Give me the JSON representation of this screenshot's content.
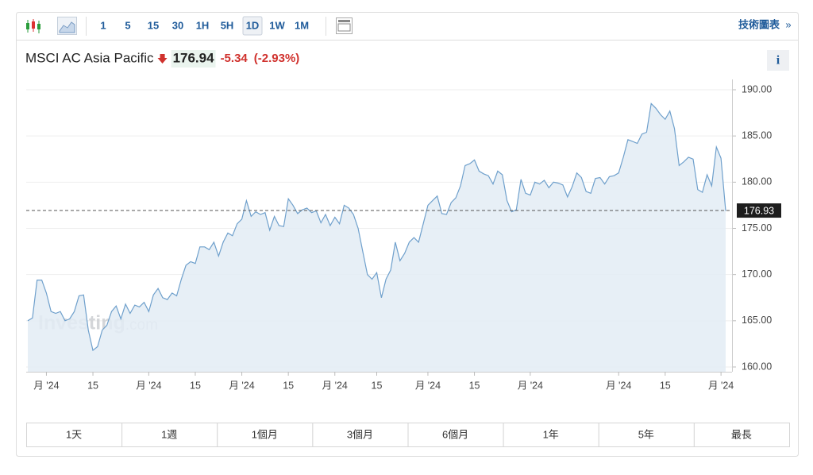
{
  "toolbar": {
    "intervals": [
      "1",
      "5",
      "15",
      "30",
      "1H",
      "5H",
      "1D",
      "1W",
      "1M"
    ],
    "active_interval": "1D",
    "technical_link": "技術圖表"
  },
  "header": {
    "name": "MSCI AC Asia Pacific",
    "price": "176.94",
    "change": "-5.34",
    "change_pct": "(-2.93%)",
    "info": "i"
  },
  "watermark": {
    "brand": "Investing",
    "suffix": ".com"
  },
  "chart_data": {
    "type": "area",
    "color": "#6fa0cc",
    "fill": "#e3ecf5",
    "values": [
      165,
      165.3,
      169.4,
      169.4,
      168,
      166,
      165.8,
      166,
      165,
      165.2,
      166,
      167.7,
      167.8,
      164,
      161.8,
      162.2,
      164,
      164.5,
      166,
      166.6,
      165.2,
      166.8,
      165.8,
      166.7,
      166.5,
      167,
      166,
      167.8,
      168.5,
      167.5,
      167.3,
      168,
      167.7,
      169.5,
      171,
      171.4,
      171.2,
      173,
      173,
      172.7,
      173.5,
      172,
      173.5,
      174.5,
      174.2,
      175.5,
      176,
      178,
      176.3,
      176.8,
      176.5,
      176.7,
      174.8,
      176.3,
      175.3,
      175.2,
      178.2,
      177.5,
      176.6,
      177,
      177.2,
      176.7,
      176.9,
      175.6,
      176.5,
      175.3,
      176.2,
      175.5,
      177.5,
      177.2,
      176.5,
      175,
      172.5,
      170,
      169.5,
      170.2,
      167.5,
      169.5,
      170.5,
      173.5,
      171.5,
      172.3,
      173.5,
      174,
      173.5,
      175.5,
      177.5,
      178,
      178.5,
      176.6,
      176.5,
      177.8,
      178.3,
      179.6,
      181.8,
      182,
      182.4,
      181.2,
      180.9,
      180.7,
      179.8,
      181.2,
      180.8,
      178,
      176.8,
      177,
      180.3,
      178.8,
      178.6,
      180,
      179.8,
      180.2,
      179.4,
      180,
      179.9,
      179.7,
      178.4,
      179.5,
      181,
      180.5,
      179,
      178.8,
      180.4,
      180.5,
      179.8,
      180.6,
      180.7,
      181,
      182.7,
      184.6,
      184.4,
      184.2,
      185.2,
      185.4,
      188.5,
      188,
      187.3,
      186.8,
      187.7,
      185.8,
      181.8,
      182.2,
      182.7,
      182.5,
      179.2,
      178.9,
      180.8,
      179.6,
      183.8,
      182.6,
      176.9
    ],
    "xlim": [
      0,
      150
    ],
    "xticks": [
      {
        "value": 4,
        "label": "月 '24"
      },
      {
        "value": 14,
        "label": "15"
      },
      {
        "value": 26,
        "label": "月 '24"
      },
      {
        "value": 36,
        "label": "15"
      },
      {
        "value": 46,
        "label": "月 '24"
      },
      {
        "value": 56,
        "label": "15"
      },
      {
        "value": 66,
        "label": "月 '24"
      },
      {
        "value": 75,
        "label": "15"
      },
      {
        "value": 86,
        "label": "月 '24"
      },
      {
        "value": 96,
        "label": "15"
      },
      {
        "value": 108,
        "label": "月 '24"
      },
      {
        "value": 127,
        "label": "月 '24"
      },
      {
        "value": 137,
        "label": "15"
      },
      {
        "value": 149,
        "label": "月 '24"
      }
    ],
    "ylim": [
      160,
      190
    ],
    "yticks": [
      {
        "value": 160,
        "label": "160.00"
      },
      {
        "value": 165,
        "label": "165.00"
      },
      {
        "value": 170,
        "label": "170.00"
      },
      {
        "value": 175,
        "label": "175.00"
      },
      {
        "value": 180,
        "label": "180.00"
      },
      {
        "value": 185,
        "label": "185.00"
      },
      {
        "value": 190,
        "label": "190.00"
      }
    ],
    "grid": true,
    "reference_line": {
      "value": 176.93,
      "label": "176.93"
    }
  },
  "ranges": [
    "1天",
    "1週",
    "1個月",
    "3個月",
    "6個月",
    "1年",
    "5年",
    "最長"
  ]
}
